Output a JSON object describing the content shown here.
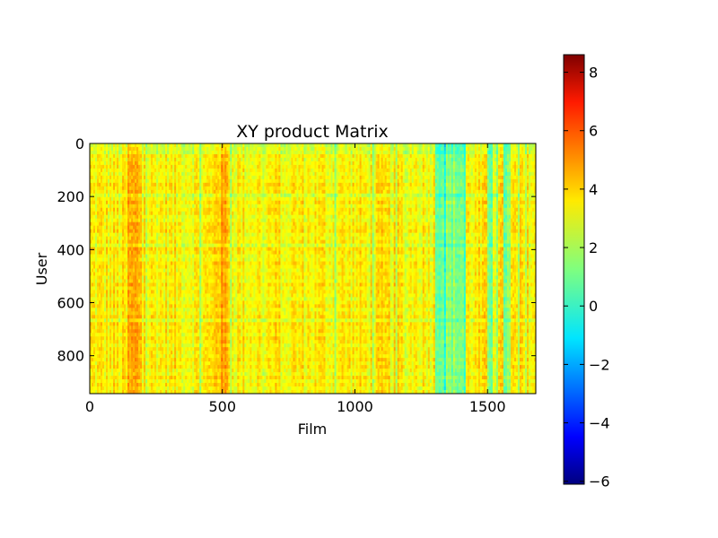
{
  "chart_data": {
    "type": "heatmap",
    "title": "XY product Matrix",
    "xlabel": "Film",
    "ylabel": "User",
    "x_ticks": [
      0,
      500,
      1000,
      1500
    ],
    "y_ticks": [
      0,
      200,
      400,
      600,
      800
    ],
    "xlim": [
      0,
      1682
    ],
    "ylim": [
      943,
      0
    ],
    "colormap": "jet",
    "colorbar": {
      "ticks": [
        8,
        6,
        4,
        2,
        0,
        -2,
        -4,
        -6
      ],
      "tick_labels": [
        "8",
        "6",
        "4",
        "2",
        "0",
        "−2",
        "−4",
        "−6"
      ],
      "range": [
        -6.1,
        8.6
      ]
    },
    "value_summary": {
      "typical_range": [
        1,
        5
      ],
      "background_value": 3.2,
      "high_column_bands_film": [
        [
          140,
          210
        ],
        [
          470,
          530
        ]
      ],
      "low_column_bands_film": [
        [
          1300,
          1420
        ],
        [
          1500,
          1520
        ],
        [
          1560,
          1590
        ]
      ]
    }
  }
}
